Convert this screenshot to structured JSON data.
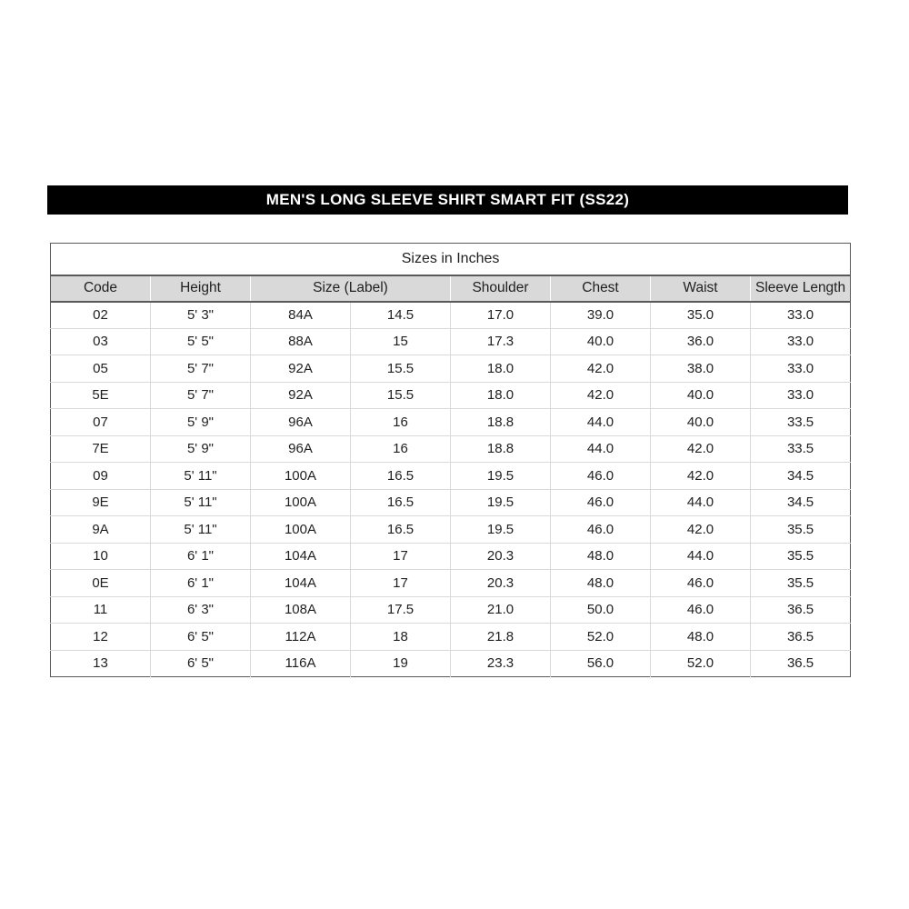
{
  "title_bar": {
    "text": "MEN'S LONG SLEEVE SHIRT SMART FIT (SS22)",
    "background_color": "#000000",
    "text_color": "#ffffff"
  },
  "table": {
    "caption": "Sizes in Inches",
    "header_background_color": "#d9d9d9",
    "border_dark_color": "#595959",
    "border_light_color": "#d9d9d9",
    "columns": [
      "Code",
      "Height",
      "Size (Label)",
      "Shoulder",
      "Chest",
      "Waist",
      "Sleeve Length"
    ],
    "size_label_colspan": 2,
    "rows": [
      [
        "02",
        "5' 3\"",
        "84A",
        "14.5",
        "17.0",
        "39.0",
        "35.0",
        "33.0"
      ],
      [
        "03",
        "5' 5\"",
        "88A",
        "15",
        "17.3",
        "40.0",
        "36.0",
        "33.0"
      ],
      [
        "05",
        "5' 7\"",
        "92A",
        "15.5",
        "18.0",
        "42.0",
        "38.0",
        "33.0"
      ],
      [
        "5E",
        "5' 7\"",
        "92A",
        "15.5",
        "18.0",
        "42.0",
        "40.0",
        "33.0"
      ],
      [
        "07",
        "5' 9\"",
        "96A",
        "16",
        "18.8",
        "44.0",
        "40.0",
        "33.5"
      ],
      [
        "7E",
        "5' 9\"",
        "96A",
        "16",
        "18.8",
        "44.0",
        "42.0",
        "33.5"
      ],
      [
        "09",
        "5' 11\"",
        "100A",
        "16.5",
        "19.5",
        "46.0",
        "42.0",
        "34.5"
      ],
      [
        "9E",
        "5' 11\"",
        "100A",
        "16.5",
        "19.5",
        "46.0",
        "44.0",
        "34.5"
      ],
      [
        "9A",
        "5' 11\"",
        "100A",
        "16.5",
        "19.5",
        "46.0",
        "42.0",
        "35.5"
      ],
      [
        "10",
        "6' 1\"",
        "104A",
        "17",
        "20.3",
        "48.0",
        "44.0",
        "35.5"
      ],
      [
        "0E",
        "6' 1\"",
        "104A",
        "17",
        "20.3",
        "48.0",
        "46.0",
        "35.5"
      ],
      [
        "11",
        "6' 3\"",
        "108A",
        "17.5",
        "21.0",
        "50.0",
        "46.0",
        "36.5"
      ],
      [
        "12",
        "6' 5\"",
        "112A",
        "18",
        "21.8",
        "52.0",
        "48.0",
        "36.5"
      ],
      [
        "13",
        "6' 5\"",
        "116A",
        "19",
        "23.3",
        "56.0",
        "52.0",
        "36.5"
      ]
    ]
  }
}
